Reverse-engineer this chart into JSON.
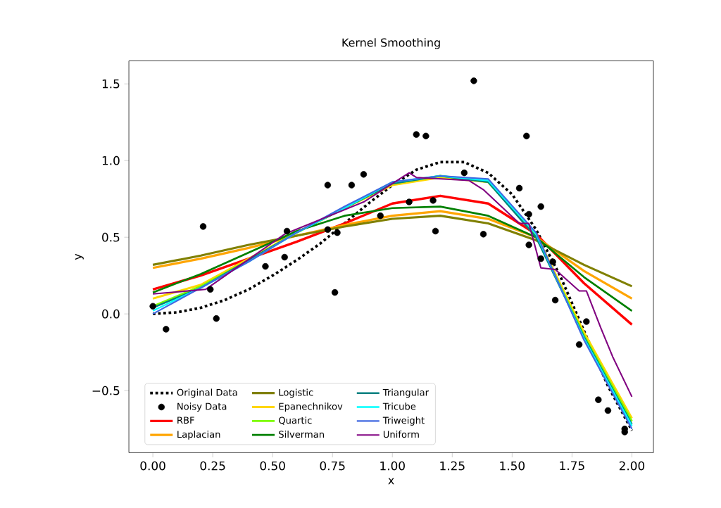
{
  "chart_data": {
    "type": "line",
    "title": "Kernel Smoothing",
    "xlabel": "x",
    "ylabel": "y",
    "xlim": [
      -0.1,
      2.09
    ],
    "ylim": [
      -0.905,
      1.65
    ],
    "xticks": [
      {
        "value": 0,
        "label": "0.00"
      },
      {
        "value": 0.25,
        "label": "0.25"
      },
      {
        "value": 0.5,
        "label": "0.50"
      },
      {
        "value": 0.75,
        "label": "0.75"
      },
      {
        "value": 1,
        "label": "1.00"
      },
      {
        "value": 1.25,
        "label": "1.25"
      },
      {
        "value": 1.5,
        "label": "1.50"
      },
      {
        "value": 1.75,
        "label": "1.75"
      },
      {
        "value": 2,
        "label": "2.00"
      }
    ],
    "yticks": [
      {
        "value": -0.5,
        "label": "−0.5"
      },
      {
        "value": 0,
        "label": "0.0"
      },
      {
        "value": 0.5,
        "label": "0.5"
      },
      {
        "value": 1,
        "label": "1.0"
      },
      {
        "value": 1.5,
        "label": "1.5"
      }
    ],
    "legend": "bottom",
    "marker": "none",
    "x": [
      0,
      0.2,
      0.4,
      0.6,
      0.8,
      1.0,
      1.2,
      1.4,
      1.6,
      1.8,
      2.0
    ],
    "series": [
      {
        "name": "Original Data",
        "color": "#000000",
        "line_style": "dotted",
        "x": [
          0,
          0.1,
          0.2,
          0.3,
          0.4,
          0.5,
          0.6,
          0.7,
          0.8,
          0.9,
          1.0,
          1.1,
          1.2,
          1.3,
          1.4,
          1.5,
          1.6,
          1.7,
          1.8,
          1.9,
          2.0
        ],
        "values": [
          0,
          0.01,
          0.04,
          0.09,
          0.16,
          0.25,
          0.35,
          0.46,
          0.59,
          0.72,
          0.84,
          0.94,
          0.99,
          0.99,
          0.92,
          0.78,
          0.55,
          0.25,
          -0.11,
          -0.47,
          -0.76
        ]
      },
      {
        "name": "Noisy Data",
        "type": "scatter",
        "marker": "circle",
        "color": "#000000",
        "x": [
          0.0,
          0.055,
          0.21,
          0.24,
          0.265,
          0.47,
          0.55,
          0.56,
          0.73,
          0.73,
          0.76,
          0.77,
          0.83,
          0.88,
          0.95,
          1.07,
          1.1,
          1.14,
          1.17,
          1.18,
          1.3,
          1.34,
          1.38,
          1.53,
          1.56,
          1.57,
          1.57,
          1.62,
          1.62,
          1.67,
          1.68,
          1.78,
          1.81,
          1.86,
          1.9,
          1.97,
          1.97
        ],
        "values": [
          0.05,
          -0.1,
          0.57,
          0.16,
          -0.03,
          0.31,
          0.37,
          0.54,
          0.84,
          0.55,
          0.14,
          0.53,
          0.84,
          0.91,
          0.64,
          0.73,
          1.17,
          1.16,
          0.74,
          0.54,
          0.92,
          1.52,
          0.52,
          0.82,
          1.16,
          0.65,
          0.45,
          0.7,
          0.36,
          0.34,
          0.09,
          -0.2,
          -0.05,
          -0.56,
          -0.63,
          -0.75,
          -0.77
        ]
      },
      {
        "name": "RBF",
        "color": "#ff0000",
        "values": [
          0.16,
          0.25,
          0.36,
          0.47,
          0.59,
          0.72,
          0.77,
          0.72,
          0.52,
          0.2,
          -0.07
        ]
      },
      {
        "name": "Laplacian",
        "color": "#ffa500",
        "values": [
          0.3,
          0.36,
          0.43,
          0.51,
          0.58,
          0.64,
          0.67,
          0.62,
          0.5,
          0.28,
          0.1
        ]
      },
      {
        "name": "Logistic",
        "color": "#808000",
        "values": [
          0.32,
          0.38,
          0.45,
          0.51,
          0.57,
          0.62,
          0.64,
          0.59,
          0.48,
          0.32,
          0.18
        ]
      },
      {
        "name": "Epanechnikov",
        "color": "#ffd700",
        "values": [
          0.1,
          0.19,
          0.36,
          0.53,
          0.69,
          0.84,
          0.89,
          0.86,
          0.52,
          -0.12,
          -0.68
        ]
      },
      {
        "name": "Quartic",
        "color": "#7cfc00",
        "values": [
          0.05,
          0.18,
          0.35,
          0.53,
          0.69,
          0.85,
          0.9,
          0.86,
          0.51,
          -0.14,
          -0.7
        ]
      },
      {
        "name": "Silverman",
        "color": "#008000",
        "values": [
          0.14,
          0.26,
          0.4,
          0.54,
          0.64,
          0.69,
          0.7,
          0.64,
          0.5,
          0.24,
          0.02
        ]
      },
      {
        "name": "Triangular",
        "color": "#008080",
        "values": [
          0.04,
          0.17,
          0.35,
          0.53,
          0.69,
          0.85,
          0.9,
          0.86,
          0.5,
          -0.15,
          -0.72
        ]
      },
      {
        "name": "Tricube",
        "color": "#00ffff",
        "values": [
          0.02,
          0.17,
          0.34,
          0.53,
          0.69,
          0.86,
          0.9,
          0.87,
          0.52,
          -0.16,
          -0.73
        ]
      },
      {
        "name": "Triweight",
        "color": "#4169e1",
        "values": [
          0.0,
          0.17,
          0.34,
          0.53,
          0.7,
          0.86,
          0.9,
          0.88,
          0.53,
          -0.17,
          -0.75
        ]
      },
      {
        "name": "Uniform",
        "color": "#800080",
        "x": [
          0,
          0.22,
          0.55,
          0.88,
          1.07,
          1.1,
          1.32,
          1.38,
          1.53,
          1.57,
          1.62,
          1.68,
          1.78,
          1.81,
          1.87,
          1.92,
          2.0
        ],
        "values": [
          0.13,
          0.16,
          0.52,
          0.73,
          0.92,
          0.89,
          0.87,
          0.81,
          0.59,
          0.59,
          0.3,
          0.29,
          0.15,
          0.15,
          -0.09,
          -0.28,
          -0.54
        ]
      }
    ]
  }
}
